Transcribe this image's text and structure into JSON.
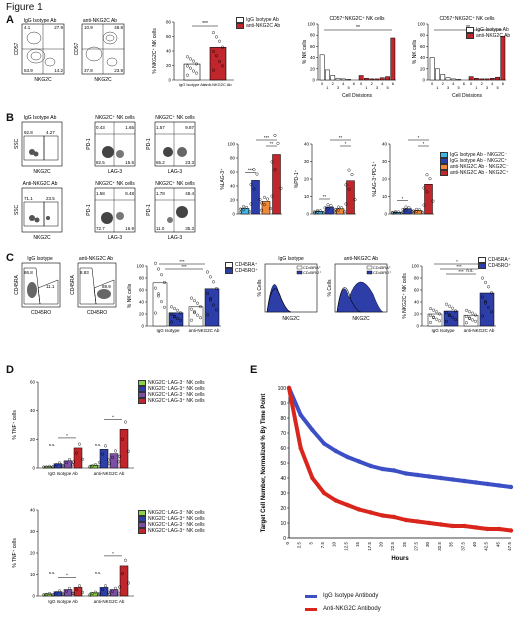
{
  "figure_title": "Figure 1",
  "panels": {
    "A": "A",
    "B": "B",
    "C": "C",
    "D": "D",
    "E": "E"
  },
  "colors": {
    "isotype": "#ffffff",
    "anti": "#c0262b",
    "blue": "#2d3ea8",
    "cyan": "#3fb6e6",
    "orange": "#f0893a",
    "red": "#c0262b",
    "green": "#8bd04a",
    "purple": "#7b4fa3",
    "e_blue": "#3d4fc4",
    "e_red": "#d9251c"
  },
  "panel_a": {
    "flow1": {
      "title": "IgG Isotype Ab",
      "x": "NKG2C",
      "y": "CD57",
      "q": [
        "4.1",
        "27.9",
        "53.9",
        "14.2"
      ]
    },
    "flow2": {
      "title": "anti-NKG2C Ab",
      "x": "NKG2C",
      "y": "CD57",
      "q": [
        "10.9",
        "48.8",
        "37.8",
        "23.9"
      ]
    },
    "legend": [
      "IgG Isotype Ab",
      "anti-NKG2C Ab"
    ]
  },
  "panel_b": {
    "flow_title1": "IgG Isotype Ab",
    "flow_title2": "Anti-NKG2C Ab",
    "sub_title": "NKG2C⁺ NK cells",
    "gate1": [
      "92.8",
      "4.27"
    ],
    "gate2": [
      "71.1",
      "23.5"
    ],
    "q1a": [
      "0.43",
      "1.65",
      "82.5",
      "15.5"
    ],
    "q1b": [
      "1.57",
      "9.87",
      "65.2",
      "23.3"
    ],
    "q2a": [
      "1.58",
      "8.48",
      "72.7",
      "16.9"
    ],
    "q2b": [
      "1.78",
      "48.4",
      "11.0",
      "35.3"
    ],
    "axis_x_ssc": "NKG2C",
    "axis_y_ssc": "SSC",
    "axis_x_pd": "LAG-3",
    "axis_y_pd": "PD-1",
    "legend": [
      "IgG Isotype Ab - NKG2C⁻",
      "IgG Isotype Ab - NKG2C⁺",
      "anti-NKG2C Ab - NKG2C⁻",
      "anti-NKG2C Ab - NKG2C⁺"
    ]
  },
  "panel_c": {
    "flow1": {
      "title": "IgG Isotype",
      "x": "CD45RO",
      "y": "CD45RA",
      "q": [
        "86.8",
        "11.1"
      ]
    },
    "flow2": {
      "title": "anti-NKG2C Ab",
      "x": "CD45RO",
      "y": "CD45RA",
      "q": [
        "8.83",
        "88.9"
      ]
    },
    "hist1_title": "IgG Isotype",
    "hist2_title": "anti-NKG2C Ab",
    "hist_x": "NKG2C",
    "hist_y": "% Cells",
    "legend_hist": [
      "CD45RA⁺",
      "CD45RO⁺"
    ],
    "legend": [
      "CD45RA⁺",
      "CD45RO⁺"
    ],
    "ns": "n.s."
  },
  "panel_d": {
    "legend": [
      "NKG2C⁻LAG-3⁻ NK cells",
      "NKG2C⁻LAG-3⁺ NK cells",
      "NKG2C⁺LAG-3⁻ NK cells",
      "NKG2C⁺LAG-3⁺ NK cells"
    ],
    "ns": "n.s."
  },
  "panel_e": {
    "legend": [
      "IgG Isotype Antibody",
      "Anti-NKG2C Antibody"
    ]
  },
  "chart_data": [
    {
      "id": "A-bar",
      "type": "bar",
      "title": "",
      "ylabel": "% NKG2C⁺ NK cells",
      "categories": [
        "IgG Isotype Ab",
        "anti-NKG2C Ab"
      ],
      "values": [
        22,
        45
      ],
      "ylim": [
        0,
        80
      ],
      "yticks": [
        "0",
        "20",
        "40",
        "60",
        "80"
      ],
      "sig": "***"
    },
    {
      "id": "A-div1",
      "type": "bar",
      "title": "CD57⁺NKG2C⁺ NK cells",
      "ylabel": "% NK cells",
      "xlabel": "Cell Divisions",
      "categories": [
        "0",
        "1",
        "2",
        "3",
        "4",
        "5",
        "6"
      ],
      "series": [
        {
          "values": [
            45,
            18,
            8,
            3,
            2,
            1,
            0
          ]
        },
        {
          "values": [
            8,
            3,
            2,
            2,
            4,
            6,
            75
          ]
        }
      ],
      "ylim": [
        0,
        100
      ],
      "yticks": [
        "0",
        "20",
        "40",
        "60",
        "80",
        "100"
      ],
      "sig": "**"
    },
    {
      "id": "A-div2",
      "type": "bar",
      "title": "CD57⁺NKG2C⁺ NK cells",
      "ylabel": "% NK cells",
      "xlabel": "Cell Divisions",
      "categories": [
        "0",
        "1",
        "2",
        "3",
        "4",
        "5",
        "6"
      ],
      "series": [
        {
          "values": [
            40,
            20,
            10,
            4,
            2,
            1,
            0
          ]
        },
        {
          "values": [
            6,
            3,
            2,
            2,
            3,
            5,
            78
          ]
        }
      ],
      "ylim": [
        0,
        100
      ],
      "yticks": [
        "0",
        "20",
        "40",
        "60",
        "80",
        "100"
      ],
      "sig": "**"
    },
    {
      "id": "B-lag3",
      "type": "bar",
      "ylabel": "%LAG-3⁺",
      "values": [
        8,
        48,
        18,
        85
      ],
      "ylim": [
        0,
        100
      ],
      "yticks": [
        "0",
        "20",
        "40",
        "60",
        "80",
        "100"
      ],
      "sig": [
        "***",
        "**",
        "***"
      ]
    },
    {
      "id": "B-pd1",
      "type": "bar",
      "ylabel": "%PD-1⁺",
      "values": [
        1.5,
        4,
        3,
        19
      ],
      "ylim": [
        0,
        40
      ],
      "yticks": [
        "0",
        "10",
        "20",
        "30",
        "40"
      ],
      "sig": [
        "**",
        "*",
        "**"
      ]
    },
    {
      "id": "B-lagpd1",
      "type": "bar",
      "ylabel": "%LAG-3⁺PD-1⁺",
      "values": [
        1,
        3,
        2,
        17
      ],
      "ylim": [
        0,
        40
      ],
      "yticks": [
        "0",
        "10",
        "20",
        "30",
        "40"
      ],
      "sig": [
        "*",
        "*",
        "*"
      ]
    },
    {
      "id": "C-bar1",
      "type": "bar",
      "ylabel": "% NK cells",
      "categories": [
        "IgG Isotype",
        "anti-NKG2C Ab"
      ],
      "series": [
        {
          "name": "CD45RA⁺",
          "values": [
            72,
            32
          ]
        },
        {
          "name": "CD45RO⁺",
          "values": [
            22,
            62
          ]
        }
      ],
      "ylim": [
        0,
        100
      ],
      "yticks": [
        "0",
        "20",
        "40",
        "60",
        "80",
        "100"
      ],
      "sig": [
        "***",
        "***"
      ]
    },
    {
      "id": "C-bar2",
      "type": "bar",
      "ylabel": "% NKG2C⁺ NK cells",
      "categories": [
        "IgG Isotype",
        "anti-NKG2C Ab"
      ],
      "series": [
        {
          "name": "CD45RA⁺",
          "values": [
            20,
            18
          ]
        },
        {
          "name": "CD45RO⁺",
          "values": [
            25,
            55
          ]
        }
      ],
      "ylim": [
        0,
        100
      ],
      "yticks": [
        "0",
        "20",
        "40",
        "60",
        "80",
        "100"
      ],
      "sig": [
        "*",
        "***",
        "***"
      ]
    },
    {
      "id": "D-tnf",
      "type": "bar",
      "ylabel": "% TNF⁺ cells",
      "categories": [
        "IgG Isotype Ab",
        "anti-NKG2C Ab"
      ],
      "series": [
        {
          "values": [
            1,
            2
          ]
        },
        {
          "values": [
            3,
            13
          ]
        },
        {
          "values": [
            5,
            10
          ]
        },
        {
          "values": [
            14,
            27
          ]
        }
      ],
      "ylim": [
        0,
        60
      ],
      "yticks": [
        "0",
        "20",
        "40",
        "60"
      ]
    },
    {
      "id": "D-ifn",
      "type": "bar",
      "ylabel": "% TNF⁺ cells",
      "categories": [
        "IgG Isotype Ab",
        "anti-NKG2C Ab"
      ],
      "series": [
        {
          "values": [
            1,
            1.5
          ]
        },
        {
          "values": [
            2,
            4
          ]
        },
        {
          "values": [
            3,
            3
          ]
        },
        {
          "values": [
            4,
            14
          ]
        }
      ],
      "ylim": [
        0,
        40
      ],
      "yticks": [
        "0",
        "10",
        "20",
        "30",
        "40"
      ]
    },
    {
      "id": "E-line",
      "type": "line",
      "ylabel": "Target Cell Number, Normalized % By Time Point",
      "xlabel": "Hours",
      "x": [
        0,
        2.5,
        5,
        7.5,
        10,
        12.5,
        15,
        17.5,
        20,
        22.5,
        25,
        27.5,
        30,
        32.5,
        35,
        37.5,
        40,
        42.5,
        45,
        47.5
      ],
      "xticks": [
        "0",
        "2.5",
        "5",
        "7.5",
        "10",
        "12.5",
        "15",
        "17.5",
        "20",
        "22.5",
        "25",
        "27.5",
        "30",
        "32.5",
        "35",
        "37.5",
        "40",
        "42.5",
        "45",
        "47.5"
      ],
      "yticks": [
        "0",
        "10",
        "20",
        "30",
        "40",
        "50",
        "60",
        "70",
        "80",
        "90",
        "100"
      ],
      "ylim": [
        0,
        100
      ],
      "series": [
        {
          "name": "IgG Isotype Antibody",
          "values": [
            100,
            82,
            72,
            63,
            58,
            54,
            51,
            48,
            46,
            45,
            43,
            42,
            41,
            40,
            39,
            38,
            37,
            36,
            35,
            34
          ]
        },
        {
          "name": "Anti-NKG2C Antibody",
          "values": [
            100,
            60,
            40,
            30,
            25,
            22,
            19,
            17,
            15,
            14,
            12,
            11,
            10,
            9,
            8,
            8,
            7,
            6,
            6,
            5
          ]
        }
      ]
    }
  ]
}
